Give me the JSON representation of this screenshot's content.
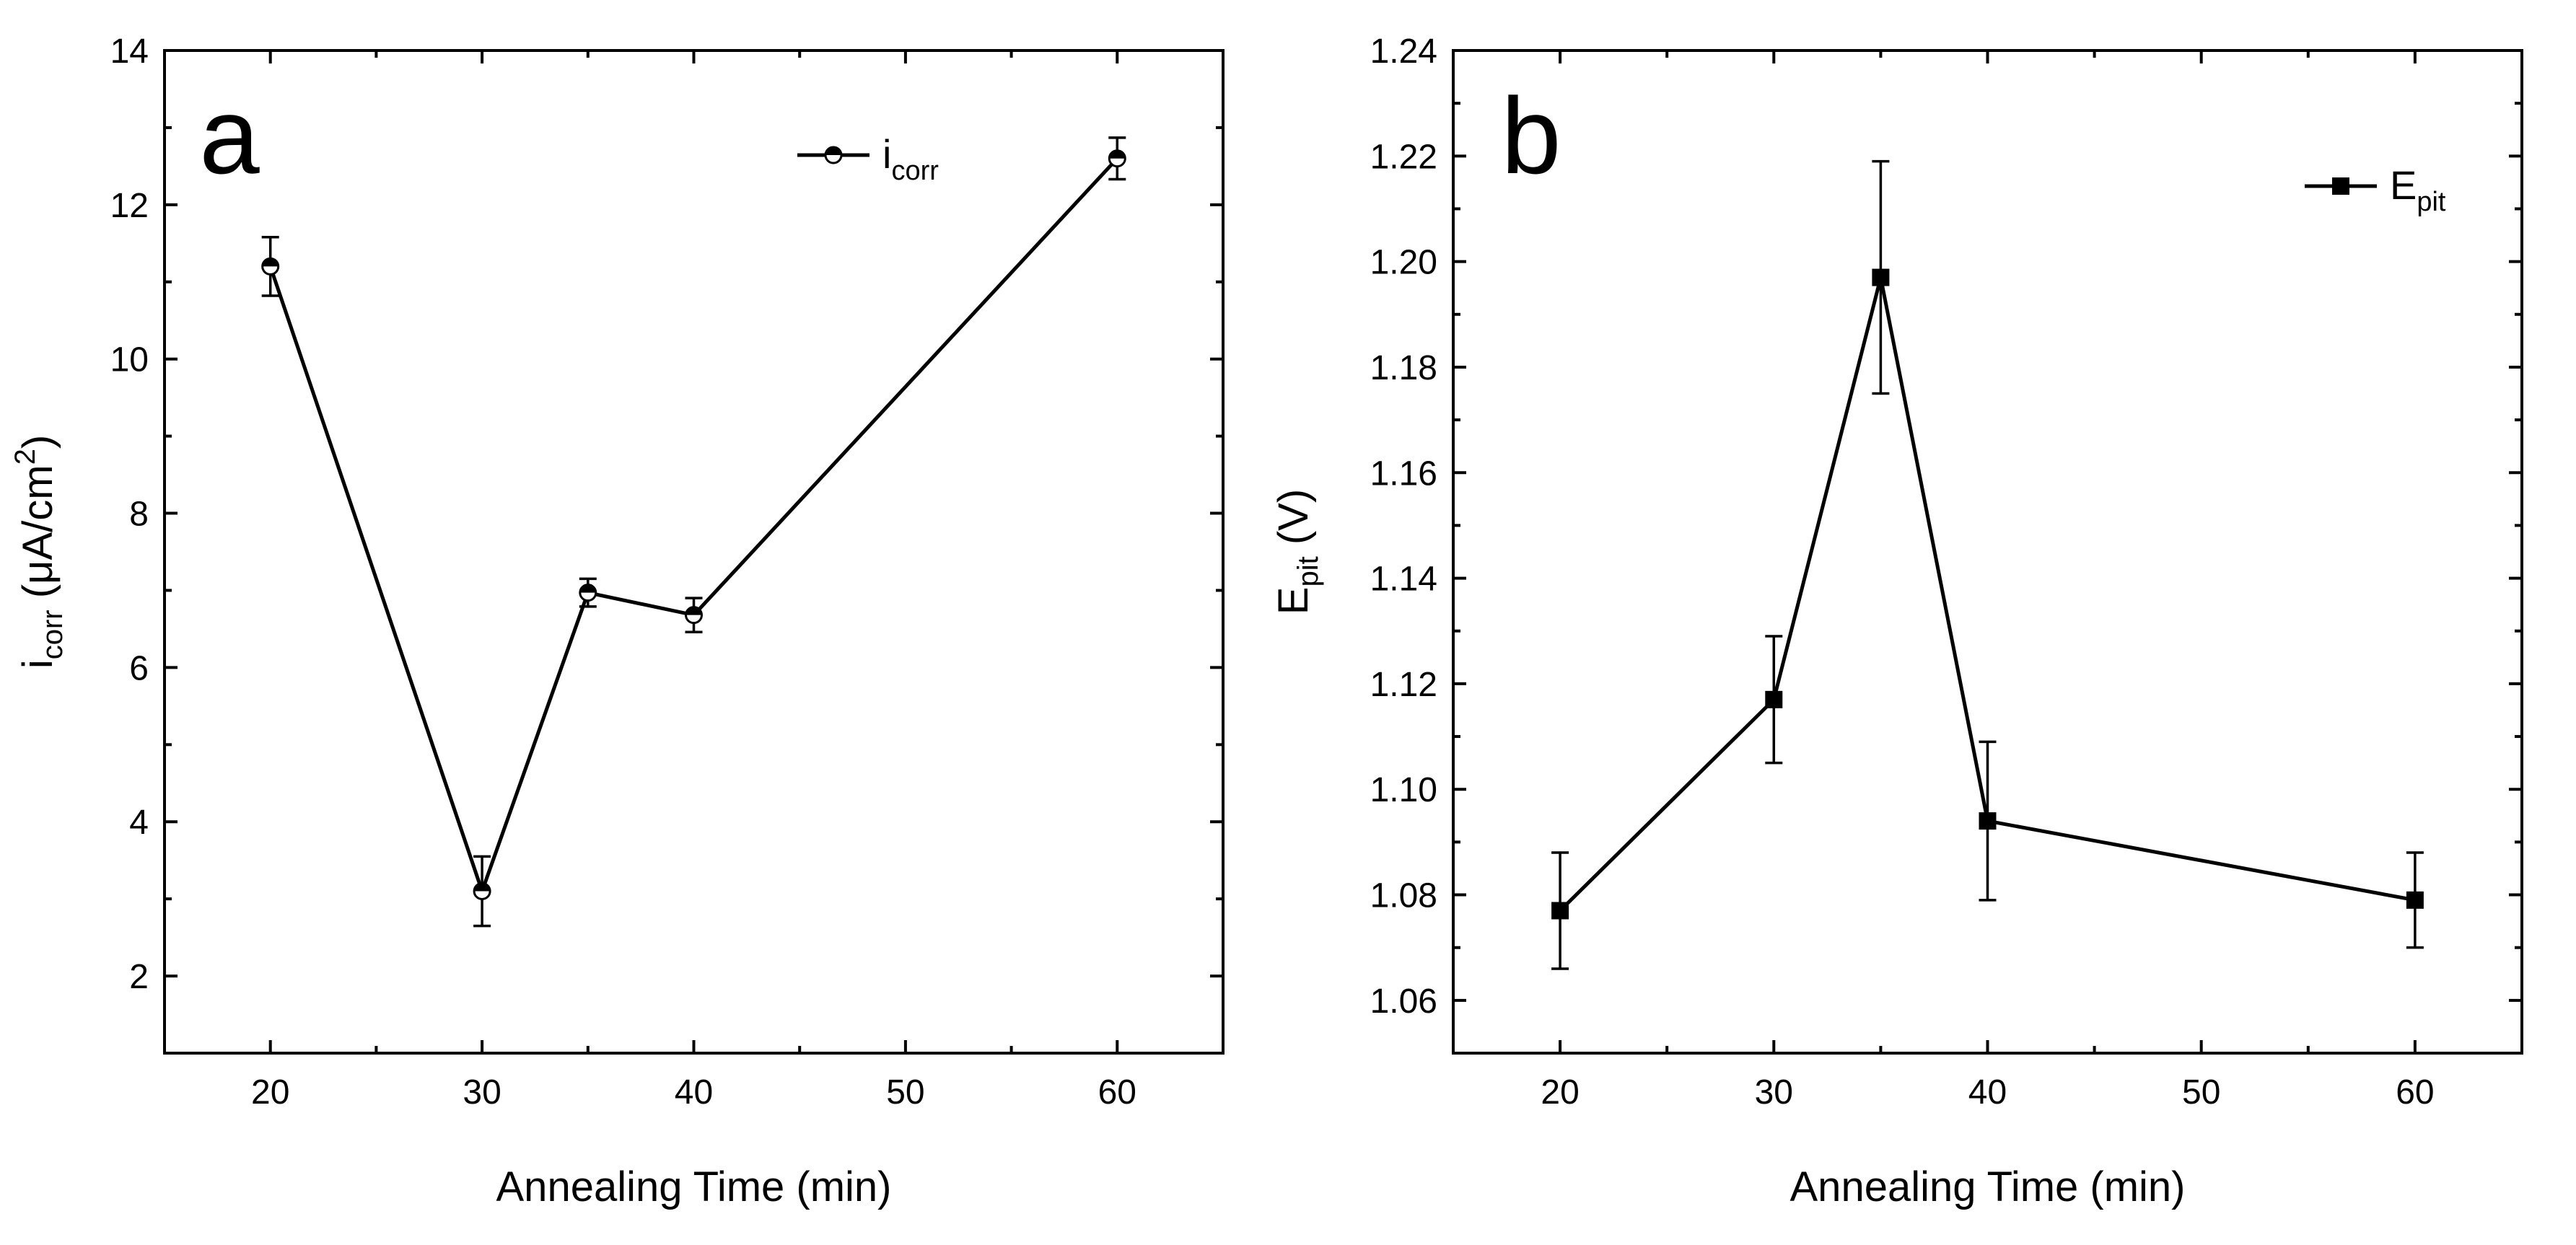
{
  "chart_data": [
    {
      "type": "line",
      "panel_label": "a",
      "title": "",
      "xlabel": "Annealing Time (min)",
      "ylabel": {
        "main": "i",
        "sub": "corr",
        "unit_prefix": " (μA/cm",
        "unit_sup": "2",
        "unit_suffix": ")"
      },
      "xlim": [
        15,
        65
      ],
      "ylim": [
        1,
        14
      ],
      "x_ticks": [
        20,
        30,
        40,
        50,
        60
      ],
      "y_ticks": [
        2,
        4,
        6,
        8,
        10,
        12,
        14
      ],
      "y_decimals": 0,
      "marker": "half-filled-circle",
      "legend": {
        "position": "top-right",
        "main": "i",
        "sub": "corr"
      },
      "series": [
        {
          "name": "icorr",
          "x": [
            20,
            30,
            35,
            40,
            60
          ],
          "y": [
            11.2,
            3.1,
            6.97,
            6.68,
            12.6
          ],
          "err": [
            0.38,
            0.45,
            0.18,
            0.22,
            0.27
          ]
        }
      ]
    },
    {
      "type": "line",
      "panel_label": "b",
      "title": "",
      "xlabel": "Annealing Time (min)",
      "ylabel": {
        "main": "E",
        "sub": "pit",
        "unit_prefix": " (V)",
        "unit_sup": "",
        "unit_suffix": ""
      },
      "xlim": [
        15,
        65
      ],
      "ylim": [
        1.05,
        1.24
      ],
      "x_ticks": [
        20,
        30,
        40,
        50,
        60
      ],
      "y_ticks": [
        1.06,
        1.08,
        1.1,
        1.12,
        1.14,
        1.16,
        1.18,
        1.2,
        1.22,
        1.24
      ],
      "y_decimals": 2,
      "marker": "filled-square",
      "legend": {
        "position": "top-right",
        "main": "E",
        "sub": "pit"
      },
      "series": [
        {
          "name": "Epit",
          "x": [
            20,
            30,
            35,
            40,
            60
          ],
          "y": [
            1.077,
            1.117,
            1.197,
            1.094,
            1.079
          ],
          "err": [
            0.011,
            0.012,
            0.022,
            0.015,
            0.009
          ]
        }
      ]
    }
  ]
}
